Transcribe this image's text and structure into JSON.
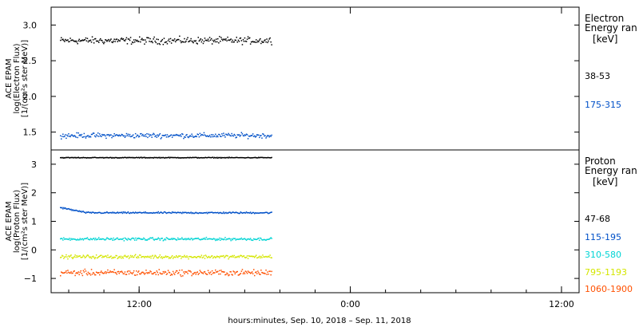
{
  "chart_data": [
    {
      "type": "scatter",
      "panel": "electron",
      "ylabel_lines": [
        "ACE EPAM",
        "log(Electron Flux)",
        "[1/(cm²s ster MeV)]"
      ],
      "ylim": [
        1.25,
        3.25
      ],
      "yticks": [
        1.5,
        2.0,
        2.5,
        3.0
      ],
      "ytick_labels": [
        "1.5",
        "2.0",
        "2.5",
        "3.0"
      ],
      "legend_title_lines": [
        "Electron",
        "Energy ran",
        "[keV]"
      ],
      "grid": false,
      "series": [
        {
          "name": "38-53",
          "color": "#000000",
          "x_start": 7.5,
          "x_end": 19.5,
          "center": 2.79,
          "spread": 0.07
        },
        {
          "name": "175-315",
          "color": "#0050c8",
          "x_start": 7.5,
          "x_end": 19.5,
          "center": 1.46,
          "spread": 0.05
        }
      ]
    },
    {
      "type": "scatter",
      "panel": "proton",
      "ylabel_lines": [
        "ACE EPAM",
        "log(Proton Flux)",
        "[1/(cm²s ster MeV)]"
      ],
      "ylim": [
        -1.5,
        3.5
      ],
      "yticks": [
        -1,
        0,
        1,
        2,
        3
      ],
      "ytick_labels": [
        "−1",
        "0",
        "1",
        "2",
        "3"
      ],
      "legend_title_lines": [
        "Proton",
        "Energy ran",
        "[keV]"
      ],
      "grid": false,
      "series": [
        {
          "name": "47-68",
          "color": "#000000",
          "x_start": 7.5,
          "x_end": 19.5,
          "center": 3.25,
          "spread": 0.02
        },
        {
          "name": "115-195",
          "color": "#0050c8",
          "x_start": 7.5,
          "x_end": 19.5,
          "center": 1.32,
          "spread": 0.04
        },
        {
          "name": "310-580",
          "color": "#00d4d4",
          "x_start": 7.5,
          "x_end": 19.5,
          "center": 0.4,
          "spread": 0.07
        },
        {
          "name": "795-1193",
          "color": "#d4e600",
          "x_start": 7.5,
          "x_end": 19.5,
          "center": -0.22,
          "spread": 0.09
        },
        {
          "name": "1060-1900",
          "color": "#ff5000",
          "x_start": 7.5,
          "x_end": 19.5,
          "center": -0.78,
          "spread": 0.15
        }
      ]
    }
  ],
  "x_axis": {
    "xlim": [
      7,
      37
    ],
    "ticks": [
      12,
      24,
      36
    ],
    "tick_labels": [
      "12:00",
      "0:00",
      "12:00"
    ],
    "title": "hours:minutes, Sep. 10, 2018 – Sep. 11, 2018"
  },
  "colors": {
    "frame": "#000000",
    "background": "#ffffff"
  }
}
